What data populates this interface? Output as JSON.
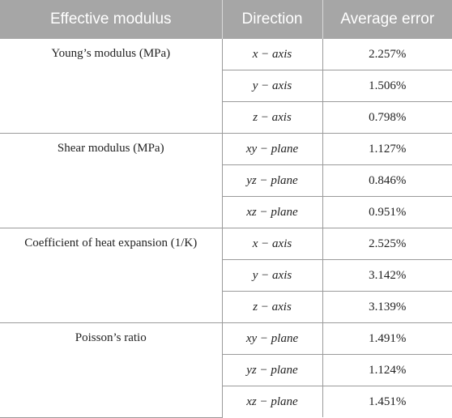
{
  "headers": [
    "Effective modulus",
    "Direction",
    "Average error"
  ],
  "groups": [
    {
      "label": "Young’s modulus (MPa)",
      "rows": [
        {
          "direction": "x − axis",
          "error": "2.257%"
        },
        {
          "direction": "y − axis",
          "error": "1.506%"
        },
        {
          "direction": "z − axis",
          "error": "0.798%"
        }
      ]
    },
    {
      "label": "Shear modulus (MPa)",
      "rows": [
        {
          "direction": "xy − plane",
          "error": "1.127%"
        },
        {
          "direction": "yz − plane",
          "error": "0.846%"
        },
        {
          "direction": "xz − plane",
          "error": "0.951%"
        }
      ]
    },
    {
      "label": "Coefficient of heat expansion (1/K)",
      "rows": [
        {
          "direction": "x − axis",
          "error": "2.525%"
        },
        {
          "direction": "y − axis",
          "error": "3.142%"
        },
        {
          "direction": "z − axis",
          "error": "3.139%"
        }
      ]
    },
    {
      "label": "Poisson’s ratio",
      "rows": [
        {
          "direction": "xy − plane",
          "error": "1.491%"
        },
        {
          "direction": "yz − plane",
          "error": "1.124%"
        },
        {
          "direction": "xz − plane",
          "error": "1.451%"
        }
      ]
    }
  ]
}
